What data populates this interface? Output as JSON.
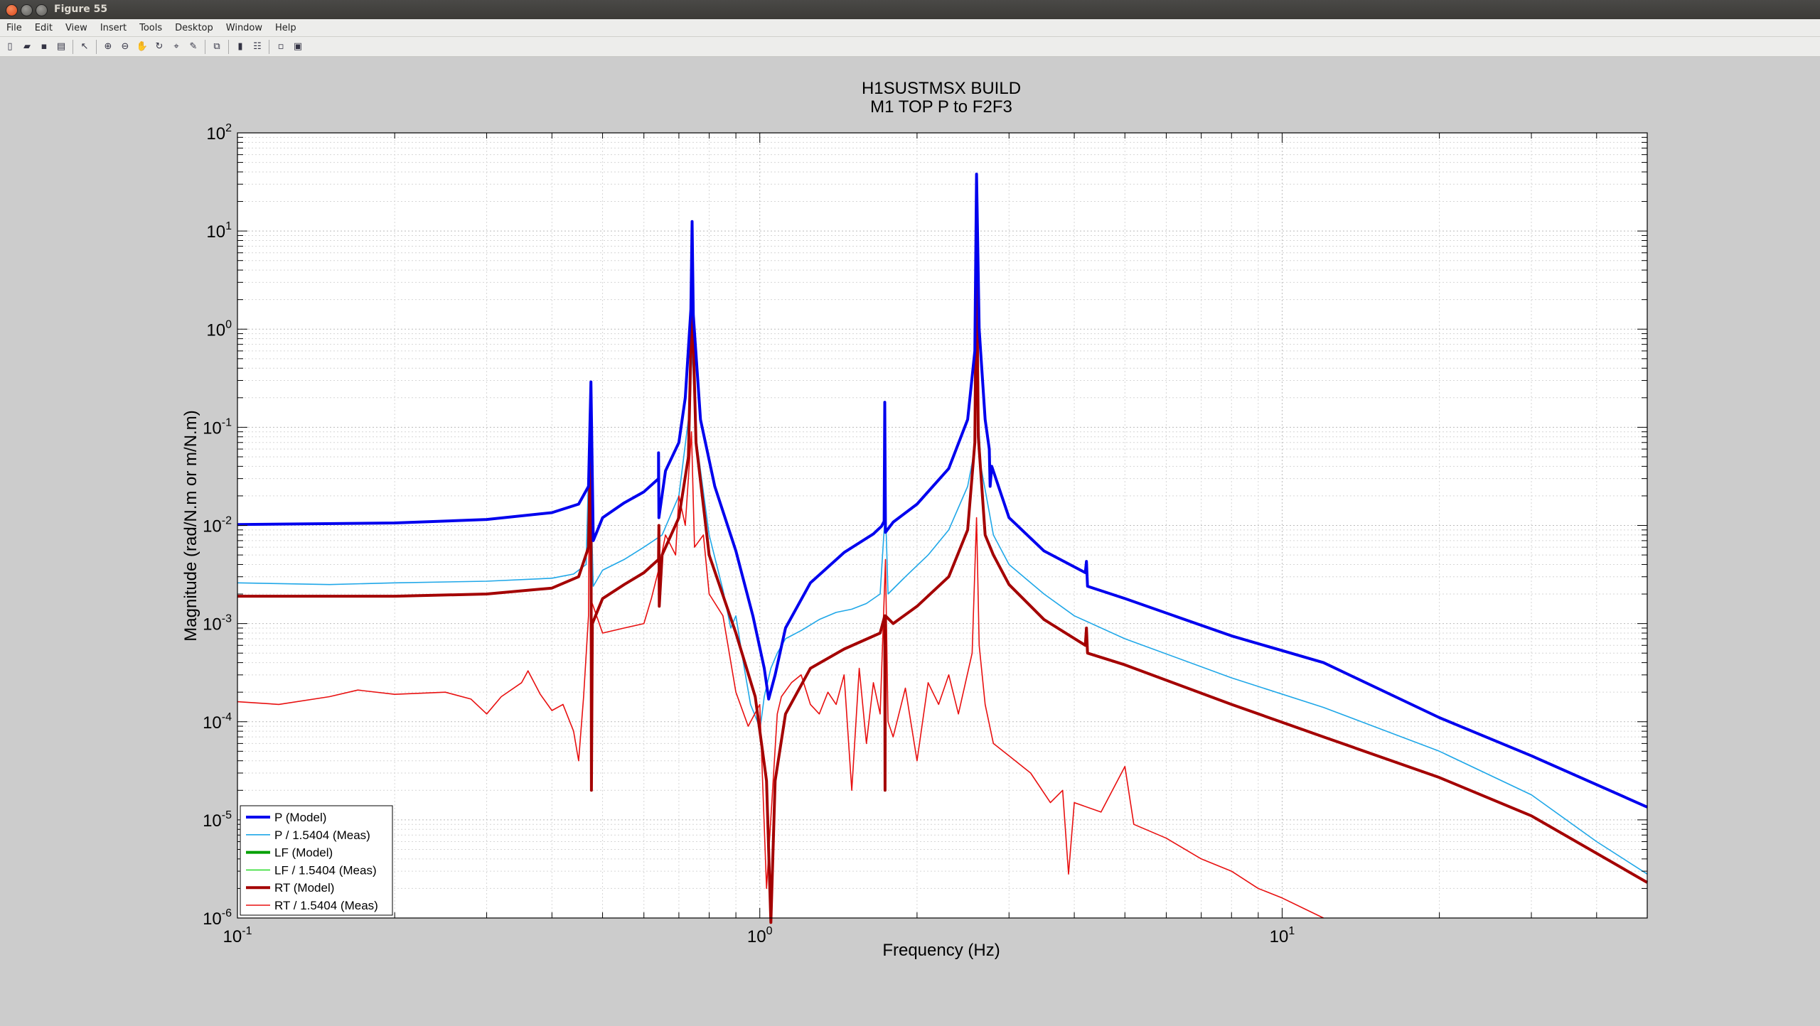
{
  "window": {
    "title": "Figure 55"
  },
  "menu": [
    "File",
    "Edit",
    "View",
    "Insert",
    "Tools",
    "Desktop",
    "Window",
    "Help"
  ],
  "toolbar_icons": [
    "new-figure-icon",
    "open-file-icon",
    "save-icon",
    "print-icon",
    "select-arrow-icon",
    "zoom-in-icon",
    "zoom-out-icon",
    "pan-hand-icon",
    "rotate-3d-icon",
    "data-cursor-icon",
    "brush-icon",
    "link-plot-icon",
    "insert-colorbar-icon",
    "insert-legend-icon",
    "hide-plot-tools-icon",
    "show-plot-tools-icon"
  ],
  "chart_data": {
    "type": "line",
    "title": "H1SUSTMSX BUILD",
    "subtitle": "M1 TOP P to F2F3",
    "xlabel": "Frequency (Hz)",
    "ylabel": "Magnitude (rad/N.m or m/N.m)",
    "xscale": "log",
    "yscale": "log",
    "xlim": [
      0.1,
      50
    ],
    "ylim": [
      1e-06,
      100
    ],
    "x_ticks": [
      {
        "v": 0.1,
        "base": "10",
        "exp": "-1"
      },
      {
        "v": 1,
        "base": "10",
        "exp": "0"
      },
      {
        "v": 10,
        "base": "10",
        "exp": "1"
      }
    ],
    "y_ticks": [
      {
        "v": 100,
        "base": "10",
        "exp": "2"
      },
      {
        "v": 10,
        "base": "10",
        "exp": "1"
      },
      {
        "v": 1,
        "base": "10",
        "exp": "0"
      },
      {
        "v": 0.1,
        "base": "10",
        "exp": "-1"
      },
      {
        "v": 0.01,
        "base": "10",
        "exp": "-2"
      },
      {
        "v": 0.001,
        "base": "10",
        "exp": "-3"
      },
      {
        "v": 0.0001,
        "base": "10",
        "exp": "-4"
      },
      {
        "v": 1e-05,
        "base": "10",
        "exp": "-5"
      },
      {
        "v": 1e-06,
        "base": "10",
        "exp": "-6"
      }
    ],
    "grid": true,
    "legend_position": "bottom-left",
    "series": [
      {
        "name": "P (Model)",
        "color": "#0000ee",
        "width": 4,
        "points": [
          [
            0.1,
            0.0102
          ],
          [
            0.2,
            0.0106
          ],
          [
            0.3,
            0.0115
          ],
          [
            0.4,
            0.0135
          ],
          [
            0.45,
            0.0165
          ],
          [
            0.47,
            0.025
          ],
          [
            0.475,
            0.29
          ],
          [
            0.48,
            0.007
          ],
          [
            0.5,
            0.012
          ],
          [
            0.55,
            0.017
          ],
          [
            0.6,
            0.022
          ],
          [
            0.64,
            0.03
          ],
          [
            0.64,
            0.055
          ],
          [
            0.641,
            0.012
          ],
          [
            0.66,
            0.036
          ],
          [
            0.7,
            0.07
          ],
          [
            0.72,
            0.2
          ],
          [
            0.738,
            1.6
          ],
          [
            0.742,
            12.5
          ],
          [
            0.746,
            1.4
          ],
          [
            0.77,
            0.12
          ],
          [
            0.82,
            0.025
          ],
          [
            0.9,
            0.0055
          ],
          [
            0.97,
            0.0012
          ],
          [
            1.02,
            0.00035
          ],
          [
            1.04,
            0.00017
          ],
          [
            1.07,
            0.0003
          ],
          [
            1.12,
            0.0009
          ],
          [
            1.25,
            0.0026
          ],
          [
            1.45,
            0.0053
          ],
          [
            1.65,
            0.0082
          ],
          [
            1.71,
            0.0098
          ],
          [
            1.73,
            0.011
          ],
          [
            1.735,
            0.18
          ],
          [
            1.74,
            0.0085
          ],
          [
            1.8,
            0.0108
          ],
          [
            2.0,
            0.0165
          ],
          [
            2.3,
            0.038
          ],
          [
            2.5,
            0.12
          ],
          [
            2.58,
            0.6
          ],
          [
            2.6,
            38
          ],
          [
            2.63,
            1.0
          ],
          [
            2.7,
            0.12
          ],
          [
            2.75,
            0.06
          ],
          [
            2.76,
            0.025
          ],
          [
            2.78,
            0.04
          ],
          [
            3.0,
            0.012
          ],
          [
            3.5,
            0.0055
          ],
          [
            4.2,
            0.0033
          ],
          [
            4.22,
            0.0043
          ],
          [
            4.24,
            0.0024
          ],
          [
            5,
            0.0018
          ],
          [
            8,
            0.00075
          ],
          [
            12,
            0.0004
          ],
          [
            20,
            0.00011
          ],
          [
            30,
            4.5e-05
          ],
          [
            50,
            1.35e-05
          ]
        ]
      },
      {
        "name": "P / 1.5404 (Meas)",
        "color": "#1fa7e8",
        "width": 1.6,
        "points": [
          [
            0.1,
            0.0026
          ],
          [
            0.15,
            0.0025
          ],
          [
            0.2,
            0.0026
          ],
          [
            0.3,
            0.0027
          ],
          [
            0.4,
            0.0029
          ],
          [
            0.44,
            0.0032
          ],
          [
            0.465,
            0.004
          ],
          [
            0.472,
            0.08
          ],
          [
            0.476,
            0.012
          ],
          [
            0.48,
            0.0024
          ],
          [
            0.5,
            0.0035
          ],
          [
            0.55,
            0.0045
          ],
          [
            0.6,
            0.006
          ],
          [
            0.65,
            0.008
          ],
          [
            0.7,
            0.02
          ],
          [
            0.73,
            0.12
          ],
          [
            0.742,
            0.6
          ],
          [
            0.755,
            0.08
          ],
          [
            0.8,
            0.008
          ],
          [
            0.85,
            0.0022
          ],
          [
            0.88,
            0.0009
          ],
          [
            0.9,
            0.0012
          ],
          [
            0.93,
            0.0004
          ],
          [
            0.96,
            0.00015
          ],
          [
            0.99,
            0.0001
          ],
          [
            1.0,
            8e-05
          ],
          [
            1.02,
            0.00018
          ],
          [
            1.05,
            0.00035
          ],
          [
            1.08,
            0.0005
          ],
          [
            1.12,
            0.0007
          ],
          [
            1.2,
            0.00085
          ],
          [
            1.3,
            0.0011
          ],
          [
            1.4,
            0.0013
          ],
          [
            1.5,
            0.0014
          ],
          [
            1.6,
            0.0016
          ],
          [
            1.7,
            0.002
          ],
          [
            1.74,
            0.015
          ],
          [
            1.76,
            0.002
          ],
          [
            1.9,
            0.003
          ],
          [
            2.1,
            0.005
          ],
          [
            2.3,
            0.009
          ],
          [
            2.5,
            0.025
          ],
          [
            2.58,
            0.06
          ],
          [
            2.6,
            0.32
          ],
          [
            2.65,
            0.04
          ],
          [
            2.8,
            0.008
          ],
          [
            3.0,
            0.004
          ],
          [
            3.5,
            0.002
          ],
          [
            4,
            0.0012
          ],
          [
            5,
            0.0007
          ],
          [
            8,
            0.00028
          ],
          [
            12,
            0.00014
          ],
          [
            20,
            5e-05
          ],
          [
            30,
            1.8e-05
          ],
          [
            40,
            6e-06
          ],
          [
            50,
            2.8e-06
          ]
        ]
      },
      {
        "name": "LF (Model)",
        "color": "#00a000",
        "width": 4,
        "points": []
      },
      {
        "name": "LF / 1.5404 (Meas)",
        "color": "#33dd33",
        "width": 1.6,
        "points": []
      },
      {
        "name": "RT (Model)",
        "color": "#a40000",
        "width": 4,
        "points": [
          [
            0.1,
            0.0019
          ],
          [
            0.2,
            0.0019
          ],
          [
            0.3,
            0.002
          ],
          [
            0.4,
            0.0023
          ],
          [
            0.45,
            0.003
          ],
          [
            0.47,
            0.006
          ],
          [
            0.475,
            0.12
          ],
          [
            0.476,
            2e-05
          ],
          [
            0.478,
            0.001
          ],
          [
            0.5,
            0.0018
          ],
          [
            0.55,
            0.0025
          ],
          [
            0.6,
            0.0033
          ],
          [
            0.64,
            0.0045
          ],
          [
            0.641,
            0.01
          ],
          [
            0.642,
            0.0015
          ],
          [
            0.65,
            0.005
          ],
          [
            0.7,
            0.012
          ],
          [
            0.73,
            0.05
          ],
          [
            0.742,
            2.3
          ],
          [
            0.755,
            0.07
          ],
          [
            0.8,
            0.005
          ],
          [
            0.9,
            0.0008
          ],
          [
            0.98,
            0.00018
          ],
          [
            1.03,
            2.5e-05
          ],
          [
            1.05,
            9e-07
          ],
          [
            1.07,
            2.5e-05
          ],
          [
            1.12,
            0.00012
          ],
          [
            1.25,
            0.00035
          ],
          [
            1.45,
            0.00055
          ],
          [
            1.7,
            0.0008
          ],
          [
            1.735,
            0.0012
          ],
          [
            1.737,
            2e-05
          ],
          [
            1.74,
            0.0012
          ],
          [
            1.8,
            0.001
          ],
          [
            2.0,
            0.0015
          ],
          [
            2.3,
            0.003
          ],
          [
            2.5,
            0.009
          ],
          [
            2.58,
            0.07
          ],
          [
            2.6,
            6.5
          ],
          [
            2.62,
            0.08
          ],
          [
            2.7,
            0.008
          ],
          [
            2.8,
            0.005
          ],
          [
            3.0,
            0.0025
          ],
          [
            3.5,
            0.0011
          ],
          [
            4.2,
            0.0006
          ],
          [
            4.22,
            0.0009
          ],
          [
            4.24,
            0.0005
          ],
          [
            5,
            0.00038
          ],
          [
            8,
            0.00015
          ],
          [
            12,
            7e-05
          ],
          [
            20,
            2.7e-05
          ],
          [
            30,
            1.1e-05
          ],
          [
            50,
            2.3e-06
          ]
        ]
      },
      {
        "name": "RT / 1.5404 (Meas)",
        "color": "#e81010",
        "width": 1.6,
        "points": [
          [
            0.1,
            0.00016
          ],
          [
            0.12,
            0.00015
          ],
          [
            0.15,
            0.00018
          ],
          [
            0.17,
            0.00021
          ],
          [
            0.2,
            0.00019
          ],
          [
            0.25,
            0.0002
          ],
          [
            0.28,
            0.00017
          ],
          [
            0.3,
            0.00012
          ],
          [
            0.32,
            0.00018
          ],
          [
            0.35,
            0.00025
          ],
          [
            0.36,
            0.00033
          ],
          [
            0.38,
            0.00019
          ],
          [
            0.4,
            0.00013
          ],
          [
            0.42,
            0.00015
          ],
          [
            0.44,
            8e-05
          ],
          [
            0.45,
            4e-05
          ],
          [
            0.46,
            0.00018
          ],
          [
            0.47,
            0.0012
          ],
          [
            0.472,
            0.05
          ],
          [
            0.474,
            0.0018
          ],
          [
            0.48,
            0.0015
          ],
          [
            0.5,
            0.0008
          ],
          [
            0.55,
            0.0009
          ],
          [
            0.6,
            0.001
          ],
          [
            0.62,
            0.0018
          ],
          [
            0.64,
            0.0035
          ],
          [
            0.66,
            0.008
          ],
          [
            0.69,
            0.005
          ],
          [
            0.7,
            0.02
          ],
          [
            0.72,
            0.01
          ],
          [
            0.74,
            0.09
          ],
          [
            0.75,
            0.006
          ],
          [
            0.78,
            0.008
          ],
          [
            0.8,
            0.002
          ],
          [
            0.85,
            0.0012
          ],
          [
            0.9,
            0.0002
          ],
          [
            0.95,
            9e-05
          ],
          [
            1.0,
            0.00015
          ],
          [
            1.03,
            2e-06
          ],
          [
            1.08,
            0.00012
          ],
          [
            1.1,
            0.00018
          ],
          [
            1.15,
            0.00025
          ],
          [
            1.2,
            0.0003
          ],
          [
            1.25,
            0.00015
          ],
          [
            1.3,
            0.00012
          ],
          [
            1.35,
            0.0002
          ],
          [
            1.4,
            0.00015
          ],
          [
            1.45,
            0.0003
          ],
          [
            1.5,
            2e-05
          ],
          [
            1.55,
            0.00035
          ],
          [
            1.6,
            6e-05
          ],
          [
            1.65,
            0.00025
          ],
          [
            1.7,
            0.00012
          ],
          [
            1.74,
            0.0045
          ],
          [
            1.76,
            0.0001
          ],
          [
            1.8,
            7e-05
          ],
          [
            1.9,
            0.00022
          ],
          [
            2.0,
            4e-05
          ],
          [
            2.1,
            0.00025
          ],
          [
            2.2,
            0.00015
          ],
          [
            2.3,
            0.0003
          ],
          [
            2.4,
            0.00012
          ],
          [
            2.55,
            0.0005
          ],
          [
            2.6,
            0.012
          ],
          [
            2.63,
            0.0006
          ],
          [
            2.7,
            0.00015
          ],
          [
            2.8,
            6e-05
          ],
          [
            3.0,
            4.5e-05
          ],
          [
            3.3,
            3e-05
          ],
          [
            3.6,
            1.5e-05
          ],
          [
            3.8,
            2e-05
          ],
          [
            3.9,
            2.8e-06
          ],
          [
            4.0,
            1.5e-05
          ],
          [
            4.5,
            1.2e-05
          ],
          [
            5,
            3.5e-05
          ],
          [
            5.2,
            9e-06
          ],
          [
            6,
            6.5e-06
          ],
          [
            7,
            4e-06
          ],
          [
            8,
            3e-06
          ],
          [
            9,
            2e-06
          ],
          [
            10,
            1.6e-06
          ],
          [
            12,
            1e-06
          ]
        ]
      }
    ]
  }
}
